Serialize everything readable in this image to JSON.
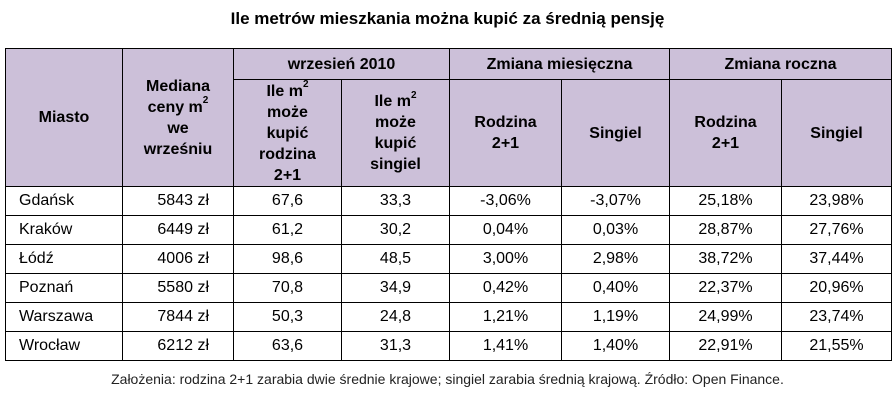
{
  "chart_data": {
    "type": "table",
    "title": "Ile metrów mieszkania można kupić za średnią pensję",
    "header": {
      "miasto": "Miasto",
      "mediana": [
        "Mediana",
        "ceny m",
        "2",
        "we",
        "wrześniu"
      ],
      "group_sep": "wrzesień 2010",
      "group_mies": "Zmiana miesięczna",
      "group_rocz": "Zmiana roczna",
      "rodzina_m2": [
        "Ile m",
        "2",
        "może",
        "kupić",
        "rodzina",
        "2+1"
      ],
      "singiel_m2": [
        "Ile m",
        "2",
        "może",
        "kupić",
        "singiel"
      ],
      "rodzina": [
        "Rodzina",
        "2+1"
      ],
      "singiel": "Singiel"
    },
    "rows": [
      {
        "city": "Gdańsk",
        "price": "5843 zł",
        "m2_family": "67,6",
        "m2_single": "33,3",
        "mom_family": "-3,06%",
        "mom_single": "-3,07%",
        "yoy_family": "25,18%",
        "yoy_single": "23,98%"
      },
      {
        "city": "Kraków",
        "price": "6449 zł",
        "m2_family": "61,2",
        "m2_single": "30,2",
        "mom_family": "0,04%",
        "mom_single": "0,03%",
        "yoy_family": "28,87%",
        "yoy_single": "27,76%"
      },
      {
        "city": "Łódź",
        "price": "4006 zł",
        "m2_family": "98,6",
        "m2_single": "48,5",
        "mom_family": "3,00%",
        "mom_single": "2,98%",
        "yoy_family": "38,72%",
        "yoy_single": "37,44%"
      },
      {
        "city": "Poznań",
        "price": "5580 zł",
        "m2_family": "70,8",
        "m2_single": "34,9",
        "mom_family": "0,42%",
        "mom_single": "0,40%",
        "yoy_family": "22,37%",
        "yoy_single": "20,96%"
      },
      {
        "city": "Warszawa",
        "price": "7844 zł",
        "m2_family": "50,3",
        "m2_single": "24,8",
        "mom_family": "1,21%",
        "mom_single": "1,19%",
        "yoy_family": "24,99%",
        "yoy_single": "23,74%"
      },
      {
        "city": "Wrocław",
        "price": "6212 zł",
        "m2_family": "63,6",
        "m2_single": "31,3",
        "mom_family": "1,41%",
        "mom_single": "1,40%",
        "yoy_family": "22,91%",
        "yoy_single": "21,55%"
      }
    ],
    "footnote": "Założenia: rodzina 2+1 zarabia dwie średnie krajowe; singiel zarabia średnią krajową. Źródło: Open Finance."
  },
  "colors": {
    "header_background": "#ccc0d9",
    "border": "#000000"
  }
}
